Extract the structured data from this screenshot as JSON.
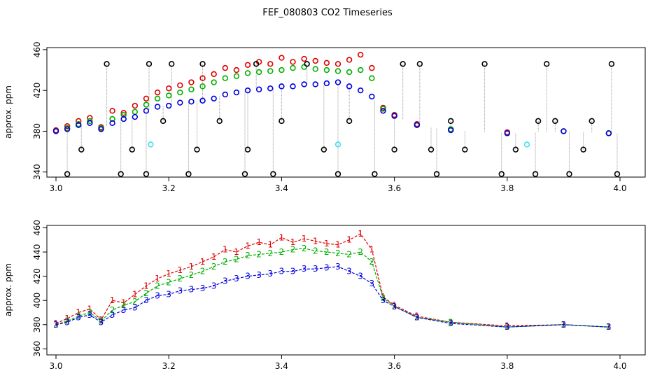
{
  "title": "FEF_080803  CO2 Timeseries",
  "colors": {
    "black": "#000000",
    "red": "#e00000",
    "green": "#00b000",
    "blue": "#0000e0",
    "cyan": "#40e0f0",
    "line": "#9a9a9a"
  },
  "chart_data": [
    {
      "type": "scatter",
      "title": "FEF_080803  CO2 Timeseries",
      "xlabel": "",
      "ylabel": "approx. ppm",
      "xlim": [
        3.0,
        4.0
      ],
      "ylim": [
        335,
        462
      ],
      "xticks": [
        "3.0",
        "3.2",
        "3.4",
        "3.6",
        "3.8",
        "4.0"
      ],
      "yticks": [
        "340",
        "380",
        "420",
        "460"
      ],
      "series": [
        {
          "color": "red",
          "marker": "circle",
          "x": [
            3.0,
            3.02,
            3.04,
            3.06,
            3.08,
            3.1,
            3.12,
            3.14,
            3.16,
            3.18,
            3.2,
            3.22,
            3.24,
            3.26,
            3.28,
            3.3,
            3.32,
            3.34,
            3.36,
            3.38,
            3.4,
            3.42,
            3.44,
            3.46,
            3.48,
            3.5,
            3.52,
            3.54,
            3.56,
            3.58,
            3.6,
            3.64,
            3.7,
            3.8,
            3.9,
            3.98
          ],
          "y": [
            381,
            385,
            390,
            393,
            384,
            400,
            398,
            405,
            412,
            418,
            422,
            425,
            428,
            432,
            436,
            442,
            440,
            445,
            448,
            446,
            452,
            448,
            451,
            449,
            447,
            446,
            450,
            455,
            442,
            403,
            396,
            387,
            382,
            379,
            380,
            378
          ]
        },
        {
          "color": "green",
          "marker": "circle",
          "x": [
            3.0,
            3.02,
            3.04,
            3.06,
            3.08,
            3.1,
            3.12,
            3.14,
            3.16,
            3.18,
            3.2,
            3.22,
            3.24,
            3.26,
            3.28,
            3.3,
            3.32,
            3.34,
            3.36,
            3.38,
            3.4,
            3.42,
            3.44,
            3.46,
            3.48,
            3.5,
            3.52,
            3.54,
            3.56,
            3.58,
            3.6,
            3.64,
            3.7,
            3.8,
            3.9,
            3.98
          ],
          "y": [
            380,
            383,
            387,
            390,
            383,
            392,
            396,
            399,
            406,
            412,
            415,
            418,
            421,
            424,
            428,
            432,
            434,
            437,
            438,
            439,
            440,
            442,
            443,
            441,
            440,
            439,
            438,
            440,
            432,
            402,
            395,
            386,
            382,
            378,
            380,
            378
          ]
        },
        {
          "color": "blue",
          "marker": "circle",
          "x": [
            3.0,
            3.02,
            3.04,
            3.06,
            3.08,
            3.1,
            3.12,
            3.14,
            3.16,
            3.18,
            3.2,
            3.22,
            3.24,
            3.26,
            3.28,
            3.3,
            3.32,
            3.34,
            3.36,
            3.38,
            3.4,
            3.42,
            3.44,
            3.46,
            3.48,
            3.5,
            3.52,
            3.54,
            3.56,
            3.58,
            3.6,
            3.64,
            3.7,
            3.8,
            3.9,
            3.98
          ],
          "y": [
            380,
            382,
            386,
            388,
            382,
            388,
            392,
            394,
            400,
            404,
            405,
            408,
            409,
            410,
            412,
            416,
            418,
            420,
            421,
            422,
            424,
            424,
            426,
            426,
            427,
            428,
            424,
            420,
            414,
            400,
            395,
            386,
            381,
            378,
            380,
            378
          ]
        },
        {
          "color": "black",
          "marker": "circle",
          "x": [
            3.02,
            3.045,
            3.09,
            3.115,
            3.135,
            3.16,
            3.165,
            3.19,
            3.205,
            3.235,
            3.25,
            3.26,
            3.29,
            3.335,
            3.34,
            3.355,
            3.385,
            3.4,
            3.445,
            3.475,
            3.5,
            3.52,
            3.565,
            3.6,
            3.615,
            3.645,
            3.665,
            3.675,
            3.7,
            3.725,
            3.76,
            3.79,
            3.815,
            3.85,
            3.855,
            3.87,
            3.885,
            3.91,
            3.935,
            3.95,
            3.985,
            3.995
          ],
          "y": [
            338,
            362,
            446,
            338,
            362,
            338,
            446,
            390,
            446,
            338,
            362,
            446,
            390,
            338,
            362,
            446,
            338,
            390,
            446,
            362,
            338,
            390,
            338,
            362,
            446,
            446,
            362,
            338,
            390,
            362,
            446,
            338,
            362,
            338,
            390,
            446,
            390,
            338,
            362,
            390,
            446,
            338
          ]
        },
        {
          "color": "cyan",
          "marker": "circle",
          "x": [
            3.168,
            3.5,
            3.835
          ],
          "y": [
            367,
            367,
            367
          ]
        }
      ]
    },
    {
      "type": "line",
      "title": "",
      "xlabel": "",
      "ylabel": "approx. ppm",
      "xlim": [
        3.0,
        4.0
      ],
      "ylim": [
        355,
        462
      ],
      "xticks": [
        "3.0",
        "3.2",
        "3.4",
        "3.6",
        "3.8",
        "4.0"
      ],
      "yticks": [
        "360",
        "380",
        "400",
        "420",
        "440",
        "460"
      ],
      "series": [
        {
          "label": "1",
          "color": "red",
          "x": [
            3.0,
            3.02,
            3.04,
            3.06,
            3.08,
            3.1,
            3.12,
            3.14,
            3.16,
            3.18,
            3.2,
            3.22,
            3.24,
            3.26,
            3.28,
            3.3,
            3.32,
            3.34,
            3.36,
            3.38,
            3.4,
            3.42,
            3.44,
            3.46,
            3.48,
            3.5,
            3.52,
            3.54,
            3.56,
            3.58,
            3.6,
            3.64,
            3.7,
            3.8,
            3.9,
            3.98
          ],
          "y": [
            381,
            385,
            390,
            393,
            384,
            400,
            398,
            405,
            412,
            418,
            422,
            425,
            428,
            432,
            436,
            442,
            440,
            445,
            448,
            446,
            452,
            448,
            451,
            449,
            447,
            446,
            450,
            455,
            442,
            403,
            396,
            387,
            382,
            379,
            380,
            378
          ]
        },
        {
          "label": "2",
          "color": "green",
          "x": [
            3.0,
            3.02,
            3.04,
            3.06,
            3.08,
            3.1,
            3.12,
            3.14,
            3.16,
            3.18,
            3.2,
            3.22,
            3.24,
            3.26,
            3.28,
            3.3,
            3.32,
            3.34,
            3.36,
            3.38,
            3.4,
            3.42,
            3.44,
            3.46,
            3.48,
            3.5,
            3.52,
            3.54,
            3.56,
            3.58,
            3.6,
            3.64,
            3.7,
            3.8,
            3.9,
            3.98
          ],
          "y": [
            380,
            383,
            387,
            390,
            383,
            392,
            396,
            399,
            406,
            412,
            415,
            418,
            421,
            424,
            428,
            432,
            434,
            437,
            438,
            439,
            440,
            442,
            443,
            441,
            440,
            439,
            438,
            440,
            432,
            402,
            395,
            386,
            382,
            378,
            380,
            378
          ]
        },
        {
          "label": "3",
          "color": "blue",
          "x": [
            3.0,
            3.02,
            3.04,
            3.06,
            3.08,
            3.1,
            3.12,
            3.14,
            3.16,
            3.18,
            3.2,
            3.22,
            3.24,
            3.26,
            3.28,
            3.3,
            3.32,
            3.34,
            3.36,
            3.38,
            3.4,
            3.42,
            3.44,
            3.46,
            3.48,
            3.5,
            3.52,
            3.54,
            3.56,
            3.58,
            3.6,
            3.64,
            3.7,
            3.8,
            3.9,
            3.98
          ],
          "y": [
            380,
            382,
            386,
            388,
            382,
            388,
            392,
            394,
            400,
            404,
            405,
            408,
            409,
            410,
            412,
            416,
            418,
            420,
            421,
            422,
            424,
            424,
            426,
            426,
            427,
            428,
            424,
            420,
            414,
            400,
            395,
            386,
            381,
            378,
            380,
            378
          ]
        }
      ]
    }
  ]
}
